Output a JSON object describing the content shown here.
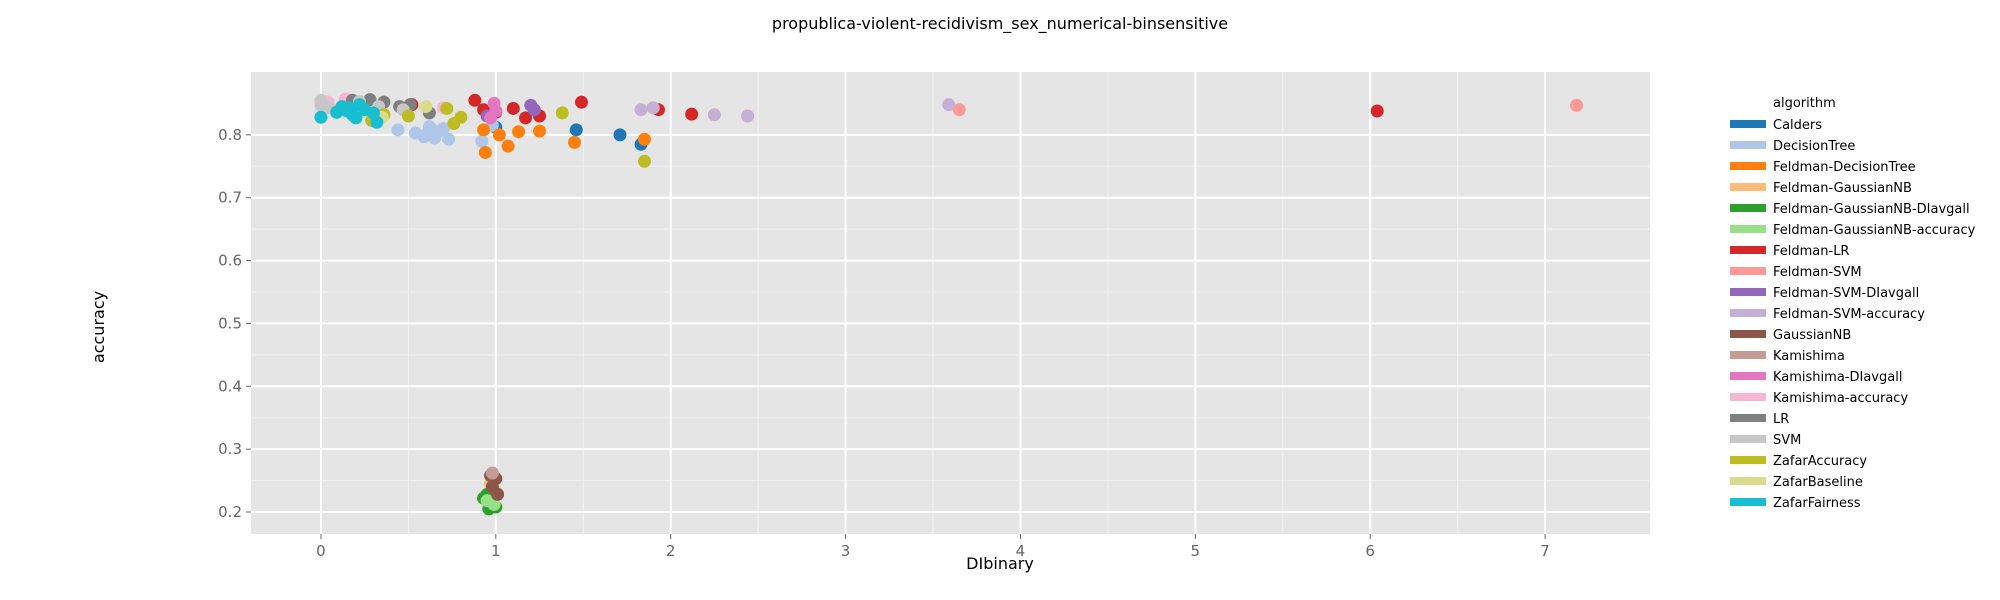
{
  "chart_data": {
    "type": "scatter",
    "title": "propublica-violent-recidivism_sex_numerical-binsensitive",
    "xlabel": "DIbinary",
    "ylabel": "accuracy",
    "xlim": [
      -0.4,
      7.6
    ],
    "ylim": [
      0.165,
      0.9
    ],
    "xticks": [
      0,
      1,
      2,
      3,
      4,
      5,
      6,
      7
    ],
    "yticks": [
      0.2,
      0.3,
      0.4,
      0.5,
      0.6,
      0.7,
      0.8
    ],
    "grid": true,
    "legend_title": "algorithm",
    "legend_position": "right",
    "series": [
      {
        "name": "Calders",
        "color": "#1f77b4",
        "x": [
          1.0,
          1.46,
          1.71,
          1.83
        ],
        "y": [
          0.812,
          0.808,
          0.8,
          0.785
        ]
      },
      {
        "name": "DecisionTree",
        "color": "#aec7e8",
        "x": [
          0.44,
          0.54,
          0.59,
          0.62,
          0.65,
          0.7,
          0.73,
          0.92,
          0.98,
          0.6,
          0.67
        ],
        "y": [
          0.808,
          0.803,
          0.797,
          0.813,
          0.795,
          0.81,
          0.793,
          0.79,
          0.815,
          0.8,
          0.805
        ]
      },
      {
        "name": "Feldman-DecisionTree",
        "color": "#ff7f0e",
        "x": [
          0.93,
          0.94,
          1.02,
          1.07,
          1.13,
          1.25,
          1.45,
          1.85
        ],
        "y": [
          0.808,
          0.772,
          0.8,
          0.782,
          0.805,
          0.806,
          0.788,
          0.793
        ]
      },
      {
        "name": "Feldman-GaussianNB",
        "color": "#ffbb78",
        "x": [
          0.97,
          1.0
        ],
        "y": [
          0.245,
          0.232
        ]
      },
      {
        "name": "Feldman-GaussianNB-DIavgall",
        "color": "#2ca02c",
        "x": [
          0.93,
          0.96,
          0.98,
          1.0,
          0.95
        ],
        "y": [
          0.222,
          0.205,
          0.215,
          0.208,
          0.228
        ]
      },
      {
        "name": "Feldman-GaussianNB-accuracy",
        "color": "#98df8a",
        "x": [
          0.95,
          0.99
        ],
        "y": [
          0.218,
          0.212
        ]
      },
      {
        "name": "Feldman-LR",
        "color": "#d62728",
        "x": [
          0.52,
          0.88,
          0.93,
          1.0,
          1.1,
          1.17,
          1.25,
          1.49,
          1.93,
          2.12,
          6.04
        ],
        "y": [
          0.848,
          0.855,
          0.84,
          0.836,
          0.842,
          0.827,
          0.83,
          0.852,
          0.84,
          0.833,
          0.838
        ]
      },
      {
        "name": "Feldman-SVM",
        "color": "#ff9896",
        "x": [
          3.65,
          7.18
        ],
        "y": [
          0.84,
          0.847
        ]
      },
      {
        "name": "Feldman-SVM-DIavgall",
        "color": "#9467bd",
        "x": [
          0.95,
          1.2,
          1.22
        ],
        "y": [
          0.83,
          0.847,
          0.84
        ]
      },
      {
        "name": "Feldman-SVM-accuracy",
        "color": "#c5b0d5",
        "x": [
          1.83,
          1.9,
          2.25,
          2.44,
          3.59
        ],
        "y": [
          0.84,
          0.843,
          0.832,
          0.83,
          0.848
        ]
      },
      {
        "name": "GaussianNB",
        "color": "#8c564b",
        "x": [
          0.97,
          1.0,
          0.98,
          1.01
        ],
        "y": [
          0.258,
          0.253,
          0.24,
          0.228
        ]
      },
      {
        "name": "Kamishima",
        "color": "#c49c94",
        "x": [
          0.98
        ],
        "y": [
          0.262
        ]
      },
      {
        "name": "Kamishima-DIavgall",
        "color": "#e377c2",
        "x": [
          0.99,
          1.0,
          0.97
        ],
        "y": [
          0.85,
          0.838,
          0.827
        ]
      },
      {
        "name": "Kamishima-accuracy",
        "color": "#f7b6d2",
        "x": [
          0.1,
          0.14,
          0.2,
          0.7,
          0.04,
          0.33
        ],
        "y": [
          0.84,
          0.857,
          0.847,
          0.843,
          0.852,
          0.835
        ]
      },
      {
        "name": "LR",
        "color": "#7f7f7f",
        "x": [
          0.18,
          0.25,
          0.28,
          0.36,
          0.45,
          0.51,
          0.62
        ],
        "y": [
          0.855,
          0.85,
          0.856,
          0.852,
          0.845,
          0.848,
          0.835
        ]
      },
      {
        "name": "SVM",
        "color": "#c7c7c7",
        "x": [
          0.0,
          0.0,
          0.05,
          0.1,
          0.22,
          0.33,
          0.47
        ],
        "y": [
          0.855,
          0.847,
          0.843,
          0.838,
          0.853,
          0.845,
          0.84
        ]
      },
      {
        "name": "ZafarAccuracy",
        "color": "#bcbd22",
        "x": [
          0.29,
          0.36,
          0.5,
          0.72,
          0.76,
          0.8,
          1.38,
          1.85
        ],
        "y": [
          0.823,
          0.832,
          0.83,
          0.842,
          0.818,
          0.828,
          0.835,
          0.758
        ]
      },
      {
        "name": "ZafarBaseline",
        "color": "#dbdb8d",
        "x": [
          0.35,
          0.6
        ],
        "y": [
          0.828,
          0.845
        ]
      },
      {
        "name": "ZafarFairness",
        "color": "#17becf",
        "x": [
          0.0,
          0.12,
          0.15,
          0.18,
          0.2,
          0.22,
          0.25,
          0.3,
          0.32,
          0.16,
          0.09
        ],
        "y": [
          0.828,
          0.845,
          0.838,
          0.832,
          0.827,
          0.848,
          0.84,
          0.835,
          0.82,
          0.843,
          0.836
        ]
      }
    ]
  }
}
